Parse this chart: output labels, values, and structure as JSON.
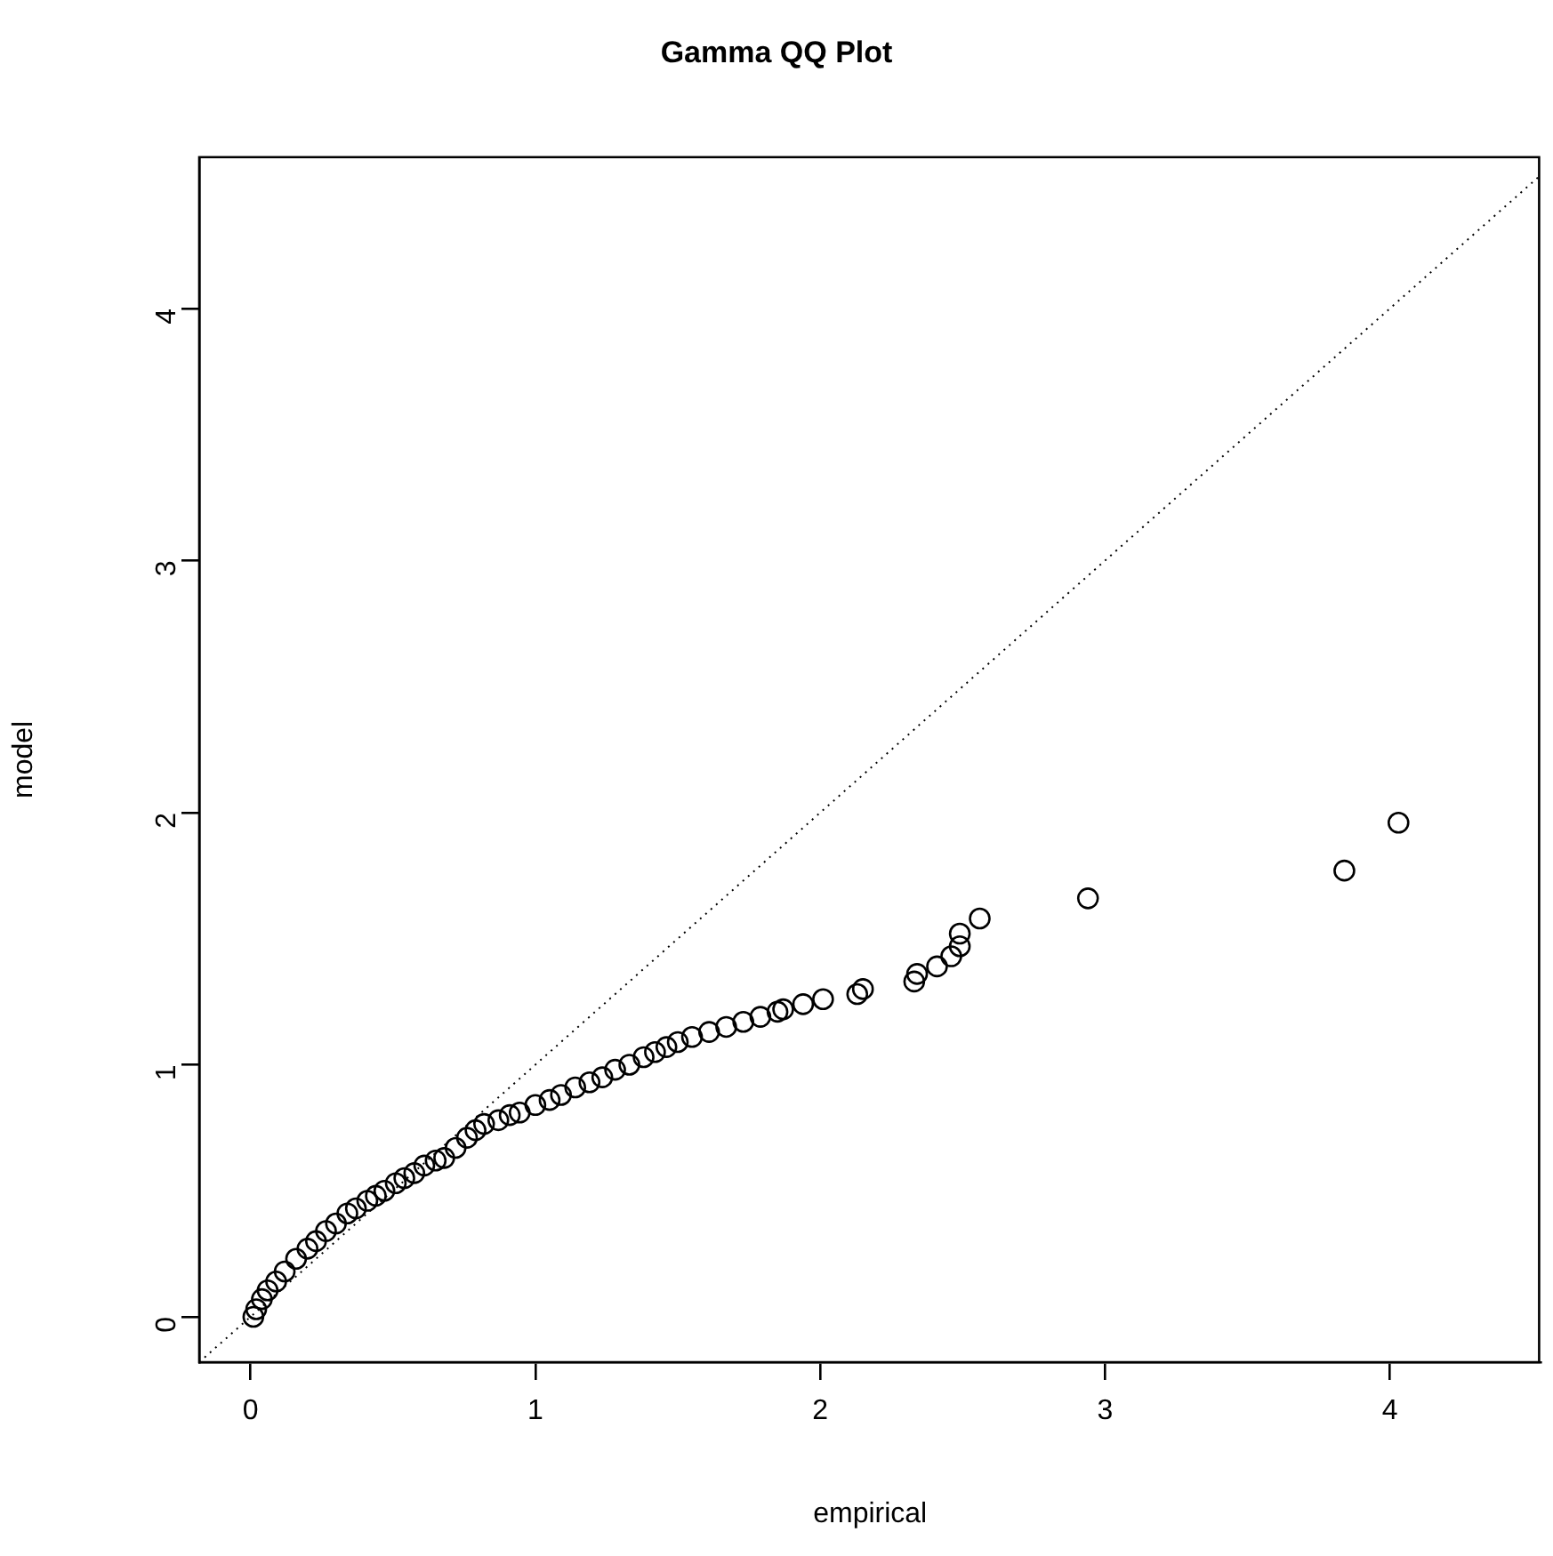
{
  "chart_data": {
    "type": "scatter",
    "title": "Gamma QQ Plot",
    "xlabel": "empirical",
    "ylabel": "model",
    "xlim": [
      -0.18,
      4.53
    ],
    "ylim": [
      -0.18,
      4.6
    ],
    "xticks": [
      0,
      1,
      2,
      3,
      4
    ],
    "yticks": [
      0,
      1,
      2,
      3,
      4
    ],
    "series": [
      {
        "color": "#000000",
        "marker": "circle",
        "x": [
          0.01,
          0.02,
          0.04,
          0.06,
          0.09,
          0.12,
          0.16,
          0.2,
          0.23,
          0.265,
          0.3,
          0.34,
          0.37,
          0.41,
          0.44,
          0.47,
          0.51,
          0.54,
          0.575,
          0.61,
          0.65,
          0.68,
          0.72,
          0.76,
          0.79,
          0.82,
          0.87,
          0.91,
          0.945,
          1.0,
          1.05,
          1.09,
          1.14,
          1.19,
          1.235,
          1.28,
          1.33,
          1.38,
          1.42,
          1.46,
          1.5,
          1.55,
          1.61,
          1.67,
          1.73,
          1.79,
          1.85,
          1.87,
          1.94,
          2.01,
          2.13,
          2.15,
          2.33,
          2.34,
          2.41,
          2.46,
          2.49,
          2.49,
          2.56,
          2.94,
          3.84,
          4.03
        ],
        "values": [
          0.0,
          0.03,
          0.07,
          0.105,
          0.14,
          0.18,
          0.23,
          0.27,
          0.3,
          0.34,
          0.37,
          0.41,
          0.43,
          0.46,
          0.48,
          0.5,
          0.53,
          0.55,
          0.57,
          0.6,
          0.62,
          0.63,
          0.67,
          0.71,
          0.74,
          0.765,
          0.78,
          0.8,
          0.81,
          0.84,
          0.86,
          0.88,
          0.91,
          0.93,
          0.95,
          0.98,
          1.0,
          1.03,
          1.05,
          1.07,
          1.09,
          1.11,
          1.13,
          1.15,
          1.17,
          1.19,
          1.21,
          1.22,
          1.24,
          1.26,
          1.28,
          1.3,
          1.33,
          1.36,
          1.39,
          1.43,
          1.47,
          1.52,
          1.58,
          1.66,
          1.77,
          1.96
        ]
      },
      {
        "type": "line",
        "color": "#000000",
        "marker": "none",
        "line_style": "dotted",
        "x": [
          -0.18,
          4.53
        ],
        "values": [
          -0.18,
          4.53
        ]
      }
    ]
  }
}
